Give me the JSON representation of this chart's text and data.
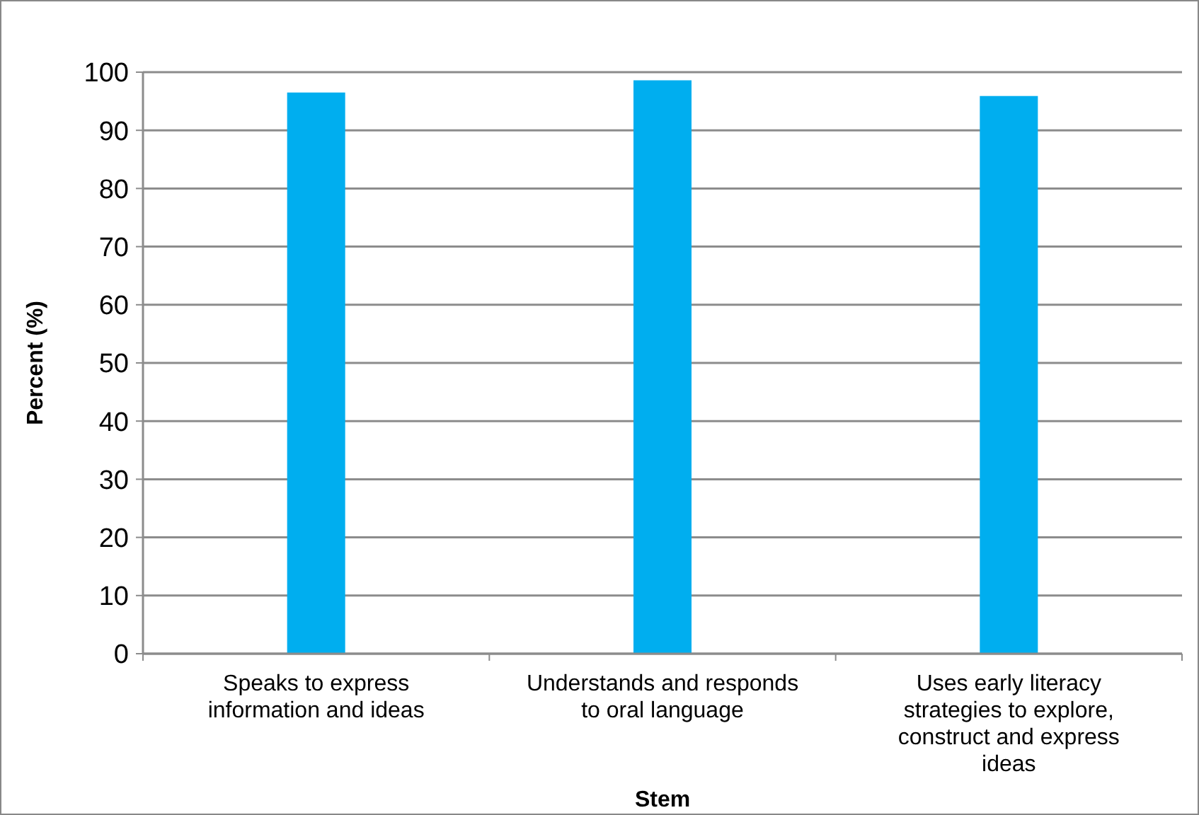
{
  "chart_data": {
    "type": "bar",
    "xlabel": "Stem",
    "ylabel": "Percent (%)",
    "categories": [
      "Speaks to express information and ideas",
      "Understands and responds to oral language",
      "Uses early literacy strategies to explore, construct and express ideas"
    ],
    "values": [
      96.5,
      98.6,
      95.9
    ],
    "color": "#00aeef",
    "ylim": [
      0,
      100
    ],
    "yticks": [
      0,
      10,
      20,
      30,
      40,
      50,
      60,
      70,
      80,
      90,
      100
    ],
    "grid": "y"
  }
}
